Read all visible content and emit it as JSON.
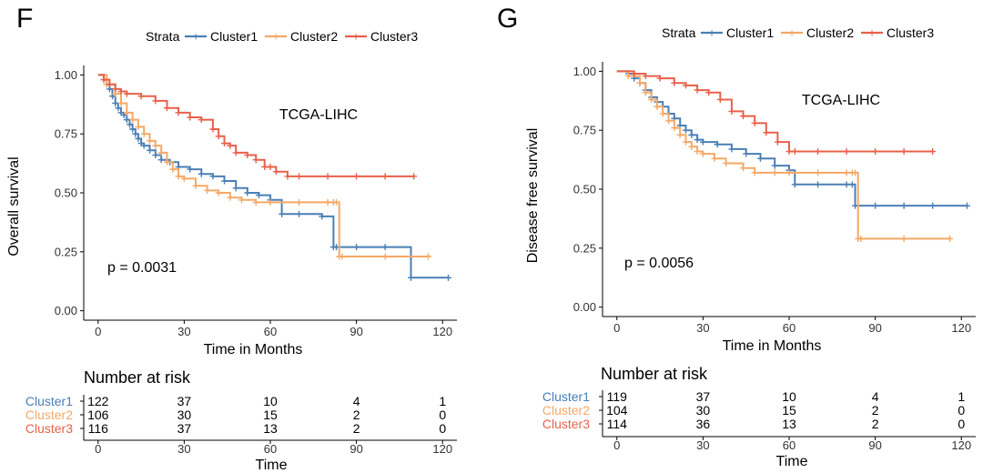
{
  "colors": {
    "Cluster1": "#4a7fb5",
    "Cluster2": "#f5a866",
    "Cluster3": "#e8604a"
  },
  "panels": [
    {
      "label": "F",
      "legend": {
        "title": "Strata",
        "entries": [
          "Cluster1",
          "Cluster2",
          "Cluster3"
        ]
      },
      "ylabel": "Overall survival",
      "xlabel": "Time in Months",
      "annotation": "TCGA-LIHC",
      "pvalue": "p = 0.0031",
      "risk_title": "Number at risk",
      "risk_xlabel": "Time",
      "risk_rows": [
        {
          "name": "Cluster1",
          "values": [
            "122",
            "37",
            "10",
            "4",
            "1"
          ]
        },
        {
          "name": "Cluster2",
          "values": [
            "106",
            "30",
            "15",
            "2",
            "0"
          ]
        },
        {
          "name": "Cluster3",
          "values": [
            "116",
            "37",
            "13",
            "2",
            "0"
          ]
        }
      ]
    },
    {
      "label": "G",
      "legend": {
        "title": "Strata",
        "entries": [
          "Cluster1",
          "Cluster2",
          "Cluster3"
        ]
      },
      "ylabel": "Disease free survival",
      "xlabel": "Time in Months",
      "annotation": "TCGA-LIHC",
      "pvalue": "p = 0.0056",
      "risk_title": "Number at risk",
      "risk_xlabel": "Time",
      "risk_rows": [
        {
          "name": "Cluster1",
          "values": [
            "119",
            "37",
            "10",
            "4",
            "1"
          ]
        },
        {
          "name": "Cluster2",
          "values": [
            "104",
            "30",
            "15",
            "2",
            "0"
          ]
        },
        {
          "name": "Cluster3",
          "values": [
            "114",
            "36",
            "13",
            "2",
            "0"
          ]
        }
      ]
    }
  ],
  "chart_data": [
    {
      "type": "line",
      "title": "TCGA-LIHC",
      "xlabel": "Time in Months",
      "ylabel": "Overall survival",
      "xlim": [
        -5,
        125
      ],
      "ylim": [
        -0.04,
        1.04
      ],
      "xticks": [
        0,
        30,
        60,
        90,
        120
      ],
      "yticks": [
        0,
        0.25,
        0.5,
        0.75,
        1
      ],
      "ytick_labels": [
        "0.00",
        "0.25",
        "0.50",
        "0.75",
        "1.00"
      ],
      "series": [
        {
          "name": "Cluster1",
          "x": [
            0,
            2,
            3,
            4,
            5,
            6,
            7,
            8,
            9,
            10,
            11,
            12,
            13,
            14,
            15,
            16,
            18,
            20,
            22,
            25,
            28,
            32,
            36,
            40,
            44,
            48,
            52,
            56,
            60,
            64,
            70,
            78,
            82,
            83,
            90,
            100,
            109,
            122
          ],
          "y": [
            1,
            0.98,
            0.96,
            0.94,
            0.91,
            0.88,
            0.86,
            0.84,
            0.83,
            0.81,
            0.79,
            0.77,
            0.75,
            0.73,
            0.71,
            0.7,
            0.68,
            0.66,
            0.64,
            0.63,
            0.61,
            0.6,
            0.58,
            0.57,
            0.55,
            0.52,
            0.5,
            0.49,
            0.47,
            0.41,
            0.41,
            0.4,
            0.27,
            0.27,
            0.27,
            0.27,
            0.14,
            0.14
          ]
        },
        {
          "name": "Cluster2",
          "x": [
            0,
            3,
            6,
            8,
            10,
            12,
            14,
            16,
            18,
            20,
            22,
            24,
            26,
            28,
            30,
            34,
            38,
            42,
            46,
            50,
            55,
            60,
            70,
            80,
            82,
            83,
            84,
            85,
            100,
            115
          ],
          "y": [
            1,
            0.96,
            0.92,
            0.88,
            0.84,
            0.81,
            0.78,
            0.75,
            0.72,
            0.7,
            0.67,
            0.63,
            0.6,
            0.57,
            0.56,
            0.53,
            0.51,
            0.5,
            0.48,
            0.47,
            0.46,
            0.46,
            0.46,
            0.46,
            0.46,
            0.46,
            0.23,
            0.23,
            0.23,
            0.23
          ]
        },
        {
          "name": "Cluster3",
          "x": [
            0,
            2,
            4,
            6,
            8,
            10,
            15,
            20,
            24,
            28,
            32,
            36,
            40,
            42,
            44,
            46,
            48,
            52,
            55,
            58,
            60,
            62,
            66,
            70,
            80,
            90,
            100,
            110
          ],
          "y": [
            1,
            0.98,
            0.96,
            0.94,
            0.93,
            0.92,
            0.91,
            0.89,
            0.86,
            0.84,
            0.82,
            0.81,
            0.77,
            0.74,
            0.71,
            0.7,
            0.67,
            0.66,
            0.64,
            0.61,
            0.61,
            0.59,
            0.57,
            0.57,
            0.57,
            0.57,
            0.57,
            0.57
          ]
        }
      ],
      "pvalue": "p = 0.0031"
    },
    {
      "type": "line",
      "title": "TCGA-LIHC",
      "xlabel": "Time in Months",
      "ylabel": "Disease free survival",
      "xlim": [
        -5,
        125
      ],
      "ylim": [
        -0.04,
        1.04
      ],
      "xticks": [
        0,
        30,
        60,
        90,
        120
      ],
      "yticks": [
        0,
        0.25,
        0.5,
        0.75,
        1
      ],
      "ytick_labels": [
        "0.00",
        "0.25",
        "0.50",
        "0.75",
        "1.00"
      ],
      "series": [
        {
          "name": "Cluster1",
          "x": [
            0,
            4,
            6,
            8,
            10,
            12,
            14,
            16,
            18,
            20,
            22,
            24,
            26,
            28,
            30,
            35,
            40,
            45,
            50,
            55,
            60,
            62,
            70,
            80,
            82,
            83,
            90,
            100,
            110,
            122
          ],
          "y": [
            1,
            0.99,
            0.97,
            0.95,
            0.92,
            0.89,
            0.87,
            0.85,
            0.82,
            0.8,
            0.77,
            0.75,
            0.73,
            0.71,
            0.7,
            0.69,
            0.67,
            0.65,
            0.63,
            0.6,
            0.58,
            0.52,
            0.52,
            0.52,
            0.52,
            0.43,
            0.43,
            0.43,
            0.43,
            0.43
          ]
        },
        {
          "name": "Cluster2",
          "x": [
            0,
            4,
            8,
            10,
            12,
            14,
            16,
            18,
            20,
            22,
            24,
            26,
            28,
            30,
            34,
            38,
            44,
            48,
            55,
            60,
            70,
            80,
            82,
            83,
            84,
            85,
            100,
            116
          ],
          "y": [
            1,
            0.98,
            0.95,
            0.91,
            0.88,
            0.85,
            0.82,
            0.79,
            0.76,
            0.73,
            0.7,
            0.68,
            0.66,
            0.65,
            0.63,
            0.61,
            0.59,
            0.57,
            0.57,
            0.57,
            0.57,
            0.57,
            0.57,
            0.57,
            0.29,
            0.29,
            0.29,
            0.29
          ]
        },
        {
          "name": "Cluster3",
          "x": [
            0,
            6,
            10,
            15,
            20,
            24,
            28,
            32,
            36,
            40,
            44,
            48,
            52,
            56,
            60,
            62,
            70,
            80,
            90,
            100,
            110
          ],
          "y": [
            1,
            0.99,
            0.98,
            0.97,
            0.95,
            0.94,
            0.92,
            0.91,
            0.88,
            0.83,
            0.81,
            0.78,
            0.74,
            0.7,
            0.66,
            0.66,
            0.66,
            0.66,
            0.66,
            0.66,
            0.66
          ]
        }
      ],
      "pvalue": "p = 0.0056"
    }
  ]
}
